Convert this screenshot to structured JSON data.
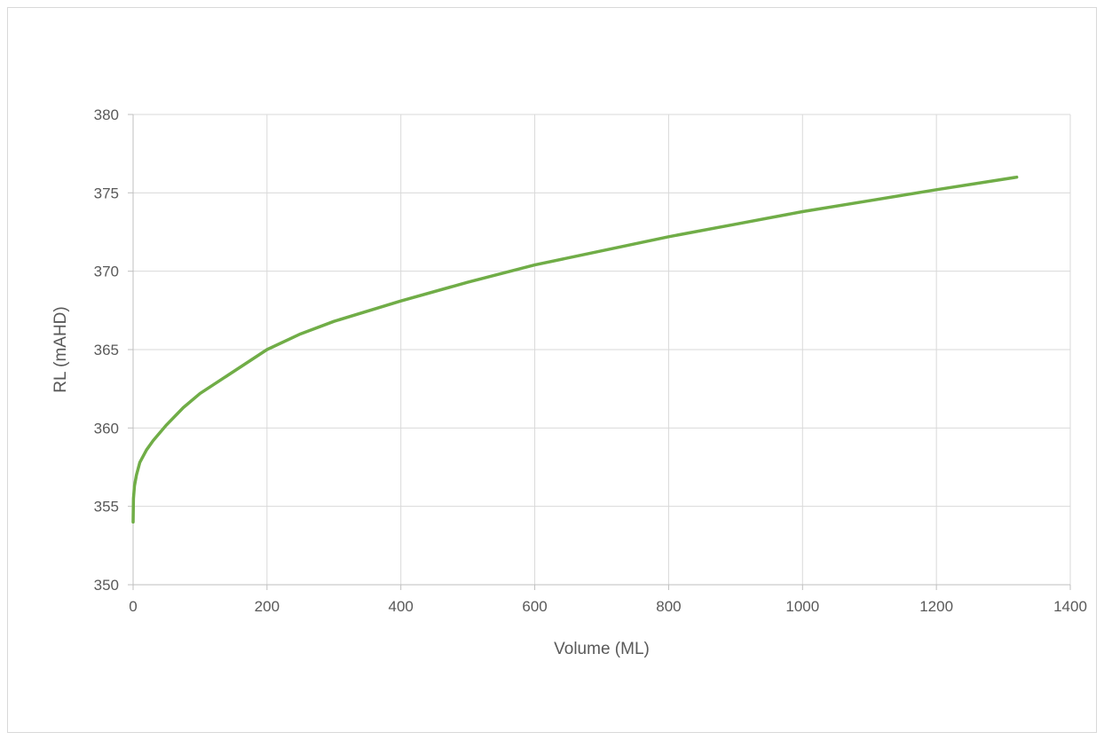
{
  "chart_data": {
    "type": "line",
    "title": "",
    "xlabel": "Volume (ML)",
    "ylabel": "RL (mAHD)",
    "xlim": [
      0,
      1400
    ],
    "ylim": [
      350,
      380
    ],
    "x_ticks": [
      0,
      200,
      400,
      600,
      800,
      1000,
      1200,
      1400
    ],
    "y_ticks": [
      350,
      355,
      360,
      365,
      370,
      375,
      380
    ],
    "grid": true,
    "legend": "none",
    "series": [
      {
        "color": "#70ad47",
        "points": [
          [
            0,
            354.0
          ],
          [
            0.5,
            355.5
          ],
          [
            2,
            356.3
          ],
          [
            5,
            357.0
          ],
          [
            10,
            357.8
          ],
          [
            20,
            358.6
          ],
          [
            30,
            359.2
          ],
          [
            50,
            360.2
          ],
          [
            75,
            361.3
          ],
          [
            100,
            362.2
          ],
          [
            150,
            363.6
          ],
          [
            200,
            365.0
          ],
          [
            250,
            366.0
          ],
          [
            300,
            366.8
          ],
          [
            400,
            368.1
          ],
          [
            500,
            369.3
          ],
          [
            600,
            370.4
          ],
          [
            700,
            371.3
          ],
          [
            800,
            372.2
          ],
          [
            900,
            373.0
          ],
          [
            1000,
            373.8
          ],
          [
            1100,
            374.5
          ],
          [
            1200,
            375.2
          ],
          [
            1320,
            376.0
          ]
        ]
      }
    ]
  }
}
